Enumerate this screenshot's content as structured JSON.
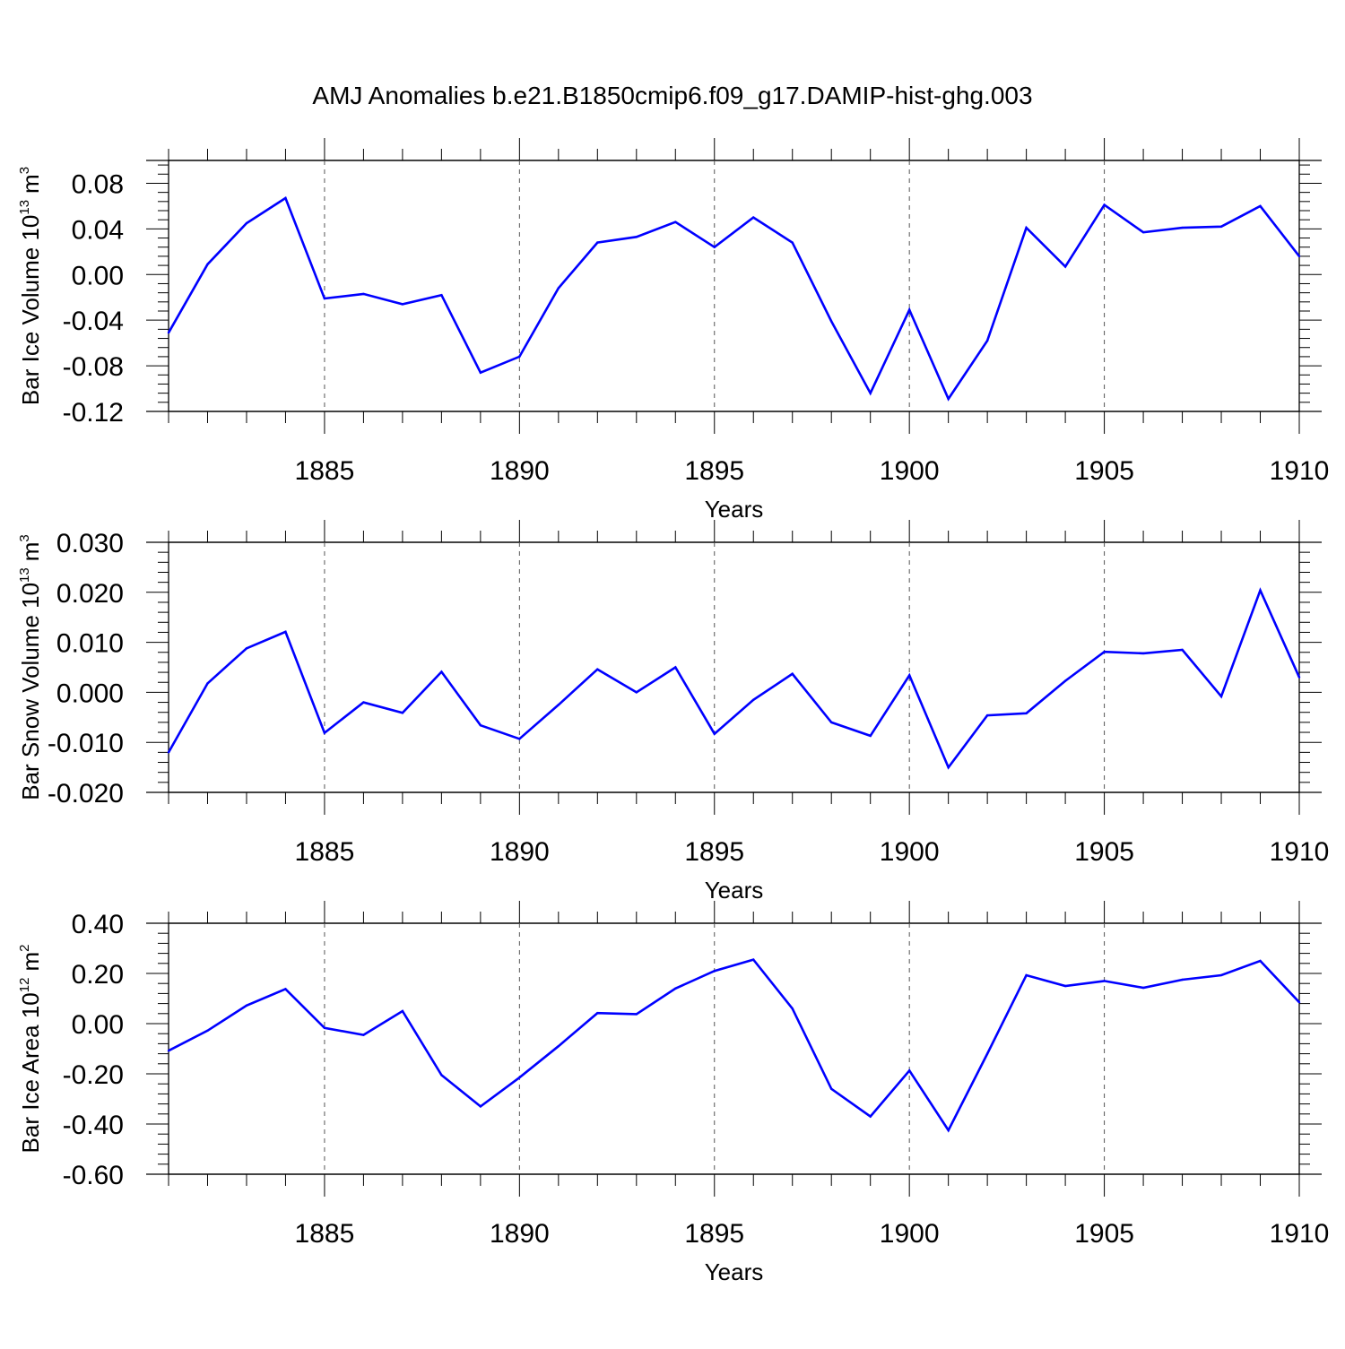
{
  "title": "AMJ Anomalies b.e21.B1850cmip6.f09_g17.DAMIP-hist-ghg.003",
  "line_color": "#0000ff",
  "chart_data": [
    {
      "type": "line",
      "name": "ice-volume",
      "ylabel": "Bar Ice Volume 10",
      "ylabel_exp": "13",
      "ylabel_unit": "m",
      "ylabel_unit_exp": "3",
      "xlabel": "Years",
      "xlim": [
        1881,
        1910
      ],
      "ylim": [
        -0.12,
        0.1
      ],
      "yticks": [
        -0.12,
        -0.08,
        -0.04,
        0.0,
        0.04,
        0.08
      ],
      "ytick_labels": [
        "-0.12",
        "-0.08",
        "-0.04",
        "0.00",
        "0.04",
        "0.08"
      ],
      "xticks": [
        1885,
        1890,
        1895,
        1900,
        1905,
        1910
      ],
      "xtick_labels": [
        "1885",
        "1890",
        "1895",
        "1900",
        "1905",
        "1910"
      ],
      "x": [
        1881,
        1882,
        1883,
        1884,
        1885,
        1886,
        1887,
        1888,
        1889,
        1890,
        1891,
        1892,
        1893,
        1894,
        1895,
        1896,
        1897,
        1898,
        1899,
        1900,
        1901,
        1902,
        1903,
        1904,
        1905,
        1906,
        1907,
        1908,
        1909,
        1910
      ],
      "values": [
        -0.051,
        0.009,
        0.045,
        0.067,
        -0.021,
        -0.017,
        -0.026,
        -0.018,
        -0.086,
        -0.072,
        -0.012,
        0.028,
        0.033,
        0.046,
        0.024,
        0.05,
        0.028,
        -0.041,
        -0.104,
        -0.031,
        -0.109,
        -0.058,
        0.041,
        0.007,
        0.061,
        0.037,
        0.041,
        0.042,
        0.06,
        0.016
      ]
    },
    {
      "type": "line",
      "name": "snow-volume",
      "ylabel": "Bar Snow Volume 10",
      "ylabel_exp": "13",
      "ylabel_unit": "m",
      "ylabel_unit_exp": "3",
      "xlabel": "Years",
      "xlim": [
        1881,
        1910
      ],
      "ylim": [
        -0.02,
        0.03
      ],
      "yticks": [
        -0.02,
        -0.01,
        0.0,
        0.01,
        0.02,
        0.03
      ],
      "ytick_labels": [
        "-0.020",
        "-0.010",
        "0.000",
        "0.010",
        "0.020",
        "0.030"
      ],
      "xticks": [
        1885,
        1890,
        1895,
        1900,
        1905,
        1910
      ],
      "xtick_labels": [
        "1885",
        "1890",
        "1895",
        "1900",
        "1905",
        "1910"
      ],
      "x": [
        1881,
        1882,
        1883,
        1884,
        1885,
        1886,
        1887,
        1888,
        1889,
        1890,
        1891,
        1892,
        1893,
        1894,
        1895,
        1896,
        1897,
        1898,
        1899,
        1900,
        1901,
        1902,
        1903,
        1904,
        1905,
        1906,
        1907,
        1908,
        1909,
        1910
      ],
      "values": [
        -0.012,
        0.0018,
        0.0088,
        0.0121,
        -0.0081,
        -0.002,
        -0.0041,
        0.0041,
        -0.0066,
        -0.0093,
        -0.0025,
        0.0046,
        0.0,
        0.005,
        -0.0083,
        -0.0015,
        0.0037,
        -0.006,
        -0.0087,
        0.0034,
        -0.015,
        -0.0046,
        -0.0042,
        0.0023,
        0.0081,
        0.0078,
        0.0085,
        -0.0008,
        0.0204,
        0.003
      ]
    },
    {
      "type": "line",
      "name": "ice-area",
      "ylabel": "Bar Ice Area 10",
      "ylabel_exp": "12",
      "ylabel_unit": "m",
      "ylabel_unit_exp": "2",
      "xlabel": "Years",
      "xlim": [
        1881,
        1910
      ],
      "ylim": [
        -0.6,
        0.4
      ],
      "yticks": [
        -0.6,
        -0.4,
        -0.2,
        0.0,
        0.2,
        0.4
      ],
      "ytick_labels": [
        "-0.60",
        "-0.40",
        "-0.20",
        "0.00",
        "0.20",
        "0.40"
      ],
      "xticks": [
        1885,
        1890,
        1895,
        1900,
        1905,
        1910
      ],
      "xtick_labels": [
        "1885",
        "1890",
        "1895",
        "1900",
        "1905",
        "1910"
      ],
      "x": [
        1881,
        1882,
        1883,
        1884,
        1885,
        1886,
        1887,
        1888,
        1889,
        1890,
        1891,
        1892,
        1893,
        1894,
        1895,
        1896,
        1897,
        1898,
        1899,
        1900,
        1901,
        1902,
        1903,
        1904,
        1905,
        1906,
        1907,
        1908,
        1909,
        1910
      ],
      "values": [
        -0.108,
        -0.028,
        0.072,
        0.138,
        -0.017,
        -0.045,
        0.05,
        -0.205,
        -0.33,
        -0.215,
        -0.09,
        0.042,
        0.038,
        0.14,
        0.21,
        0.255,
        0.06,
        -0.26,
        -0.37,
        -0.187,
        -0.425,
        -0.12,
        0.193,
        0.15,
        0.17,
        0.143,
        0.175,
        0.193,
        0.25,
        0.085
      ]
    }
  ]
}
